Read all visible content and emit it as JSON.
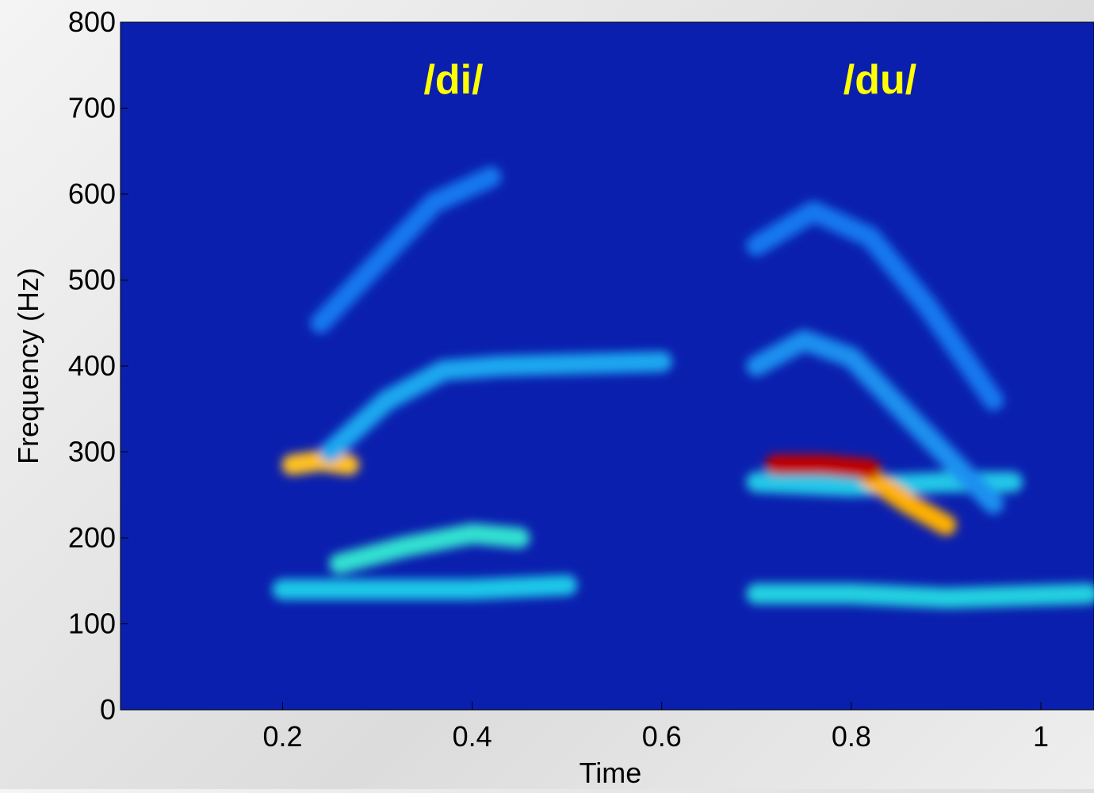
{
  "chart_data": {
    "type": "spectrogram",
    "xlabel": "Time",
    "ylabel": "Frequency (Hz)",
    "xlim": [
      0.029,
      1.056
    ],
    "ylim": [
      0,
      800
    ],
    "xticks": [
      0.2,
      0.4,
      0.6,
      0.8,
      1
    ],
    "yticks": [
      0,
      100,
      200,
      300,
      400,
      500,
      600,
      700,
      800
    ],
    "background_color": "#0b1fae",
    "annotations": [
      "/di/",
      "/du/"
    ],
    "annotation_color": "#ffff00",
    "series": [
      {
        "color": "#1fc8e8",
        "x": [
          0.2,
          0.3,
          0.4,
          0.5
        ],
        "values": [
          140,
          140,
          140,
          145
        ]
      },
      {
        "color": "#30e0d0",
        "x": [
          0.26,
          0.33,
          0.4,
          0.45
        ],
        "values": [
          170,
          190,
          205,
          200
        ]
      },
      {
        "color": "#ffc020",
        "x": [
          0.21,
          0.24,
          0.27
        ],
        "values": [
          285,
          290,
          285
        ]
      },
      {
        "color": "#1aa8f0",
        "x": [
          0.25,
          0.31,
          0.37,
          0.43,
          0.6
        ],
        "values": [
          300,
          360,
          395,
          400,
          405
        ]
      },
      {
        "color": "#1878f0",
        "x": [
          0.24,
          0.3,
          0.36,
          0.42
        ],
        "values": [
          450,
          520,
          590,
          620
        ]
      },
      {
        "color": "#20d0e0",
        "x": [
          0.7,
          0.8,
          0.9,
          1.05
        ],
        "values": [
          135,
          135,
          130,
          135
        ]
      },
      {
        "color": "#20c8e8",
        "x": [
          0.7,
          0.8,
          0.9,
          0.97
        ],
        "values": [
          265,
          260,
          265,
          265
        ]
      },
      {
        "color": "#ffb000",
        "x": [
          0.82,
          0.86,
          0.9
        ],
        "values": [
          270,
          240,
          215
        ]
      },
      {
        "color": "#c00000",
        "x": [
          0.72,
          0.77,
          0.82
        ],
        "values": [
          285,
          285,
          280
        ]
      },
      {
        "color": "#1a90f0",
        "x": [
          0.7,
          0.75,
          0.8,
          0.87,
          0.95
        ],
        "values": [
          400,
          430,
          410,
          330,
          240
        ]
      },
      {
        "color": "#1878f0",
        "x": [
          0.7,
          0.76,
          0.82,
          0.88,
          0.95
        ],
        "values": [
          540,
          580,
          550,
          470,
          360
        ]
      }
    ]
  }
}
